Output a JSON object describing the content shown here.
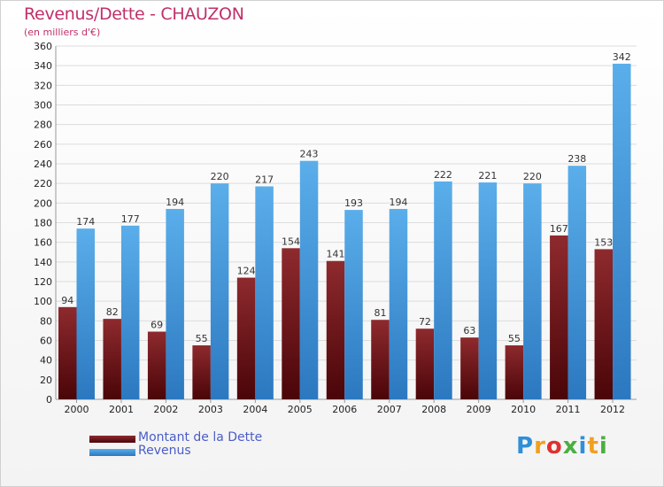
{
  "header": {
    "title": "Revenus/Dette - CHAUZON",
    "subtitle": "(en milliers d'€)"
  },
  "colors": {
    "dette": "#7a1a1e",
    "revenus": "#4a9ee0",
    "title": "#c0306a",
    "legend_text": "#4a5dc8"
  },
  "chart_data": {
    "type": "bar",
    "title": "Revenus/Dette - CHAUZON",
    "subtitle": "(en milliers d'€)",
    "xlabel": "",
    "ylabel": "",
    "ylim": [
      0,
      360
    ],
    "ytick_step": 20,
    "grid": true,
    "legend_position": "bottom-left",
    "categories": [
      "2000",
      "2001",
      "2002",
      "2003",
      "2004",
      "2005",
      "2006",
      "2007",
      "2008",
      "2009",
      "2010",
      "2011",
      "2012"
    ],
    "series": [
      {
        "name": "Montant de la Dette",
        "values": [
          94,
          82,
          69,
          55,
          124,
          154,
          141,
          81,
          72,
          63,
          55,
          167,
          153
        ]
      },
      {
        "name": "Revenus",
        "values": [
          174,
          177,
          194,
          220,
          217,
          243,
          193,
          194,
          222,
          221,
          220,
          238,
          342
        ]
      }
    ]
  },
  "legend": {
    "dette_label": "Montant de la Dette",
    "revenus_label": "Revenus"
  },
  "logo": {
    "text": "Proxiti",
    "letter_colors": [
      "#2f8fd8",
      "#f0a020",
      "#e03030",
      "#4ab040",
      "#2f8fd8",
      "#f0a020",
      "#4ab040"
    ]
  }
}
